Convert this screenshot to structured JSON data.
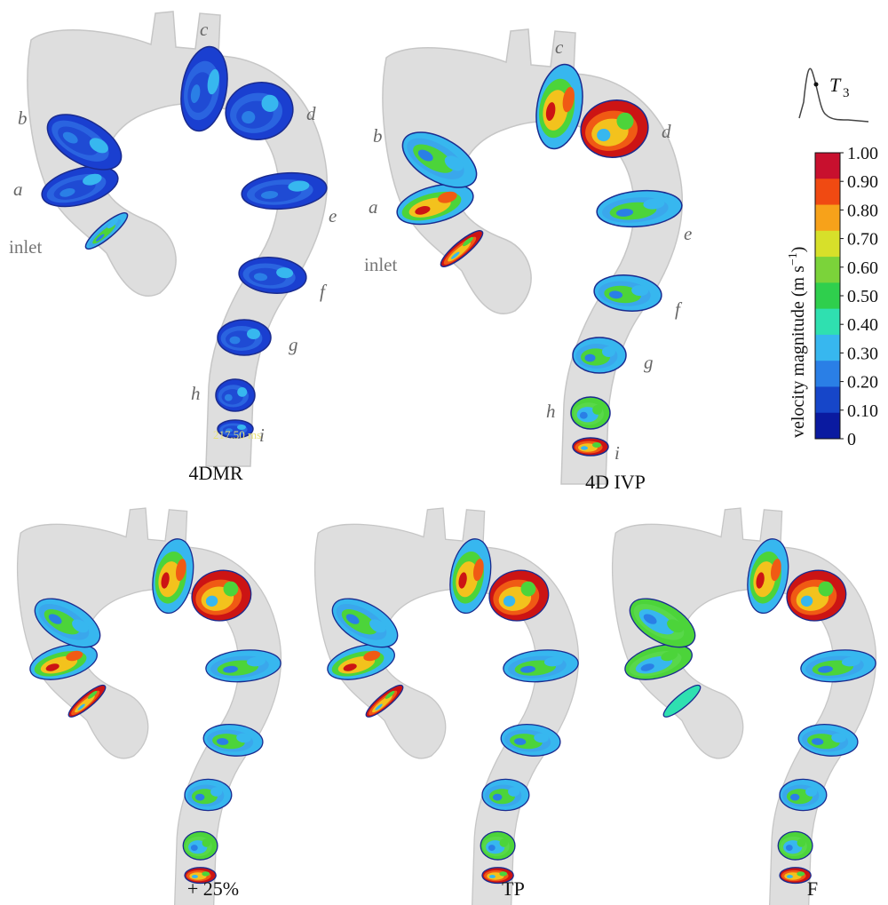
{
  "panels": [
    {
      "caption": "4DMR",
      "key": "mr"
    },
    {
      "caption": "4D IVP",
      "key": "ivp"
    },
    {
      "caption": "+ 25%",
      "key": "p25"
    },
    {
      "caption": "TP",
      "key": "tp"
    },
    {
      "caption": "F",
      "key": "f"
    }
  ],
  "slice_labels": {
    "mr": [
      "a",
      "b",
      "c",
      "d",
      "e",
      "f",
      "g",
      "h",
      "i"
    ],
    "ivp": [
      "a",
      "b",
      "c",
      "d",
      "e",
      "f",
      "g",
      "h",
      "i"
    ],
    "inlet": "inlet"
  },
  "timestamp": "217.50 ms",
  "waveform_marker": {
    "letter": "T",
    "subscript": "3"
  },
  "colorbar": {
    "title_main": "velocity magnitude (m s",
    "title_exp": "−1",
    "title_end": ")",
    "ticks": [
      "1.00",
      "0.90",
      "0.80",
      "0.70",
      "0.60",
      "0.50",
      "0.40",
      "0.30",
      "0.20",
      "0.10",
      "0"
    ],
    "colors": [
      "#c8102e",
      "#f04a12",
      "#f7a21a",
      "#d7e02a",
      "#7bd33a",
      "#2fcf4d",
      "#2fe0b0",
      "#37b7ef",
      "#2a7fe6",
      "#1646c9",
      "#0a1aa0"
    ]
  },
  "colors": {
    "vessel": "#d9d9d9",
    "vessel_edge": "#bdbdbd",
    "low": "#1a3fd0",
    "mid": "#37b7ef",
    "green": "#4cd43a",
    "yellow": "#f3c21d",
    "high": "#cc1414"
  }
}
